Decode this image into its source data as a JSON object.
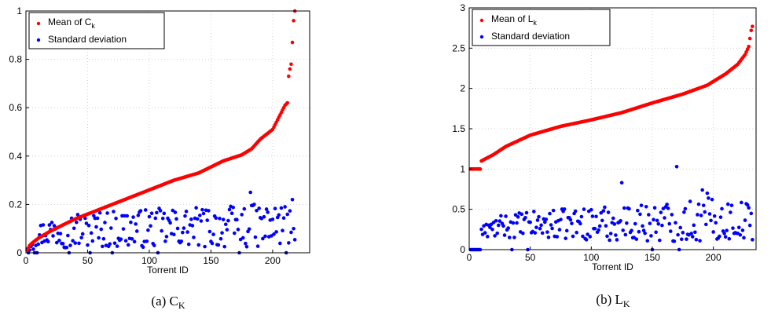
{
  "chart_data": [
    {
      "type": "scatter",
      "caption": "(a) C",
      "caption_sub": "K",
      "xlabel": "Torrent ID",
      "ylabel": "",
      "xlim": [
        0,
        230
      ],
      "ylim": [
        0,
        1
      ],
      "xticks": [
        0,
        50,
        100,
        150,
        200
      ],
      "yticks": [
        0,
        0.2,
        0.4,
        0.6,
        0.8,
        1
      ],
      "ytick_labels": [
        "0",
        "0.2",
        "0.4",
        "0.6",
        "0.8",
        "1"
      ],
      "grid": true,
      "legend_position": "top-left",
      "series": [
        {
          "legend_main": "Mean of C",
          "legend_sub": "k",
          "color": "#ff0000",
          "n": 218,
          "curve": [
            [
              1,
              0.01
            ],
            [
              3,
              0.03
            ],
            [
              5,
              0.04
            ],
            [
              10,
              0.06
            ],
            [
              20,
              0.09
            ],
            [
              40,
              0.14
            ],
            [
              60,
              0.18
            ],
            [
              80,
              0.22
            ],
            [
              100,
              0.26
            ],
            [
              120,
              0.3
            ],
            [
              140,
              0.33
            ],
            [
              160,
              0.38
            ],
            [
              175,
              0.405
            ],
            [
              183,
              0.43
            ],
            [
              190,
              0.47
            ],
            [
              200,
              0.51
            ],
            [
              205,
              0.56
            ],
            [
              210,
              0.61
            ],
            [
              212,
              0.62
            ],
            [
              213,
              0.73
            ],
            [
              214,
              0.76
            ],
            [
              215,
              0.78
            ],
            [
              216,
              0.87
            ],
            [
              217,
              0.96
            ],
            [
              218,
              1.0
            ]
          ]
        },
        {
          "legend_main": "Standard deviation",
          "color": "#0000ff",
          "n": 218,
          "ranges": [
            [
              0,
              0,
              0.04
            ],
            [
              5,
              0.01,
              0.1
            ],
            [
              15,
              0.03,
              0.14
            ],
            [
              30,
              0.02,
              0.17
            ],
            [
              200,
              0.02,
              0.2
            ],
            [
              218,
              0.03,
              0.22
            ]
          ],
          "zeros": [
            2,
            7,
            9,
            35,
            52,
            70,
            107,
            173,
            211,
            216
          ],
          "highlights": [
            [
              182,
              0.25
            ],
            [
              185,
              0.2
            ],
            [
              216,
              0.22
            ]
          ]
        }
      ]
    },
    {
      "type": "scatter",
      "caption": "(b) L",
      "caption_sub": "K",
      "xlabel": "Torrent ID",
      "ylabel": "",
      "xlim": [
        0,
        235
      ],
      "ylim": [
        0,
        3
      ],
      "xticks": [
        0,
        50,
        100,
        150,
        200
      ],
      "yticks": [
        0,
        0.5,
        1,
        1.5,
        2,
        2.5,
        3
      ],
      "ytick_labels": [
        "0",
        "0.5",
        "1",
        "1.5",
        "2",
        "2.5",
        "3"
      ],
      "grid": true,
      "legend_position": "top-left",
      "series": [
        {
          "legend_main": "Mean of L",
          "legend_sub": "k",
          "color": "#ff0000",
          "n": 232,
          "curve": [
            [
              1,
              1.0
            ],
            [
              6,
              1.0
            ],
            [
              9,
              1.0
            ],
            [
              10,
              1.1
            ],
            [
              20,
              1.18
            ],
            [
              30,
              1.28
            ],
            [
              50,
              1.42
            ],
            [
              75,
              1.53
            ],
            [
              100,
              1.61
            ],
            [
              125,
              1.7
            ],
            [
              150,
              1.82
            ],
            [
              175,
              1.93
            ],
            [
              195,
              2.04
            ],
            [
              210,
              2.18
            ],
            [
              220,
              2.3
            ],
            [
              226,
              2.42
            ],
            [
              229,
              2.52
            ],
            [
              231,
              2.72
            ],
            [
              232,
              2.77
            ]
          ]
        },
        {
          "legend_main": "Standard deviation",
          "color": "#0000ff",
          "n": 232,
          "ranges": [
            [
              0,
              0,
              0
            ],
            [
              9,
              0,
              0
            ],
            [
              10,
              0.15,
              0.3
            ],
            [
              30,
              0.15,
              0.45
            ],
            [
              200,
              0.08,
              0.65
            ],
            [
              232,
              0.12,
              0.6
            ]
          ],
          "zeros": [
            35,
            48,
            150,
            172
          ],
          "highlights": [
            [
              170,
              1.03
            ],
            [
              125,
              0.83
            ],
            [
              191,
              0.74
            ],
            [
              195,
              0.7
            ]
          ]
        }
      ]
    }
  ]
}
